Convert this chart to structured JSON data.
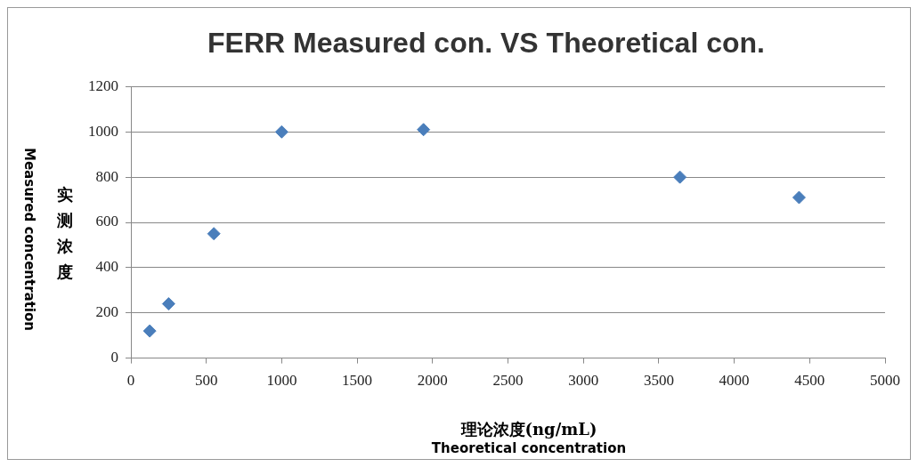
{
  "chart_data": {
    "type": "scatter",
    "title": "FERR Measured con. VS Theoretical con.",
    "xlabel": "理论浓度(ng/mL)\nTheoretical concentration",
    "ylabel": "Measured concentration\n实测浓度",
    "x": [
      125,
      250,
      550,
      1000,
      1940,
      3640,
      4430
    ],
    "series": [
      {
        "color": "#4a7ebb",
        "values": [
          120,
          240,
          550,
          1000,
          1010,
          800,
          710
        ]
      }
    ],
    "xlim": [
      0,
      5000
    ],
    "xticks": [
      0,
      500,
      1000,
      1500,
      2000,
      2500,
      3000,
      3500,
      4000,
      4500,
      5000
    ],
    "ylim": [
      0,
      1200
    ],
    "yticks": [
      0,
      200,
      400,
      600,
      800,
      1000,
      1200
    ],
    "grid": "y",
    "legend": false,
    "marker": "diamond"
  }
}
